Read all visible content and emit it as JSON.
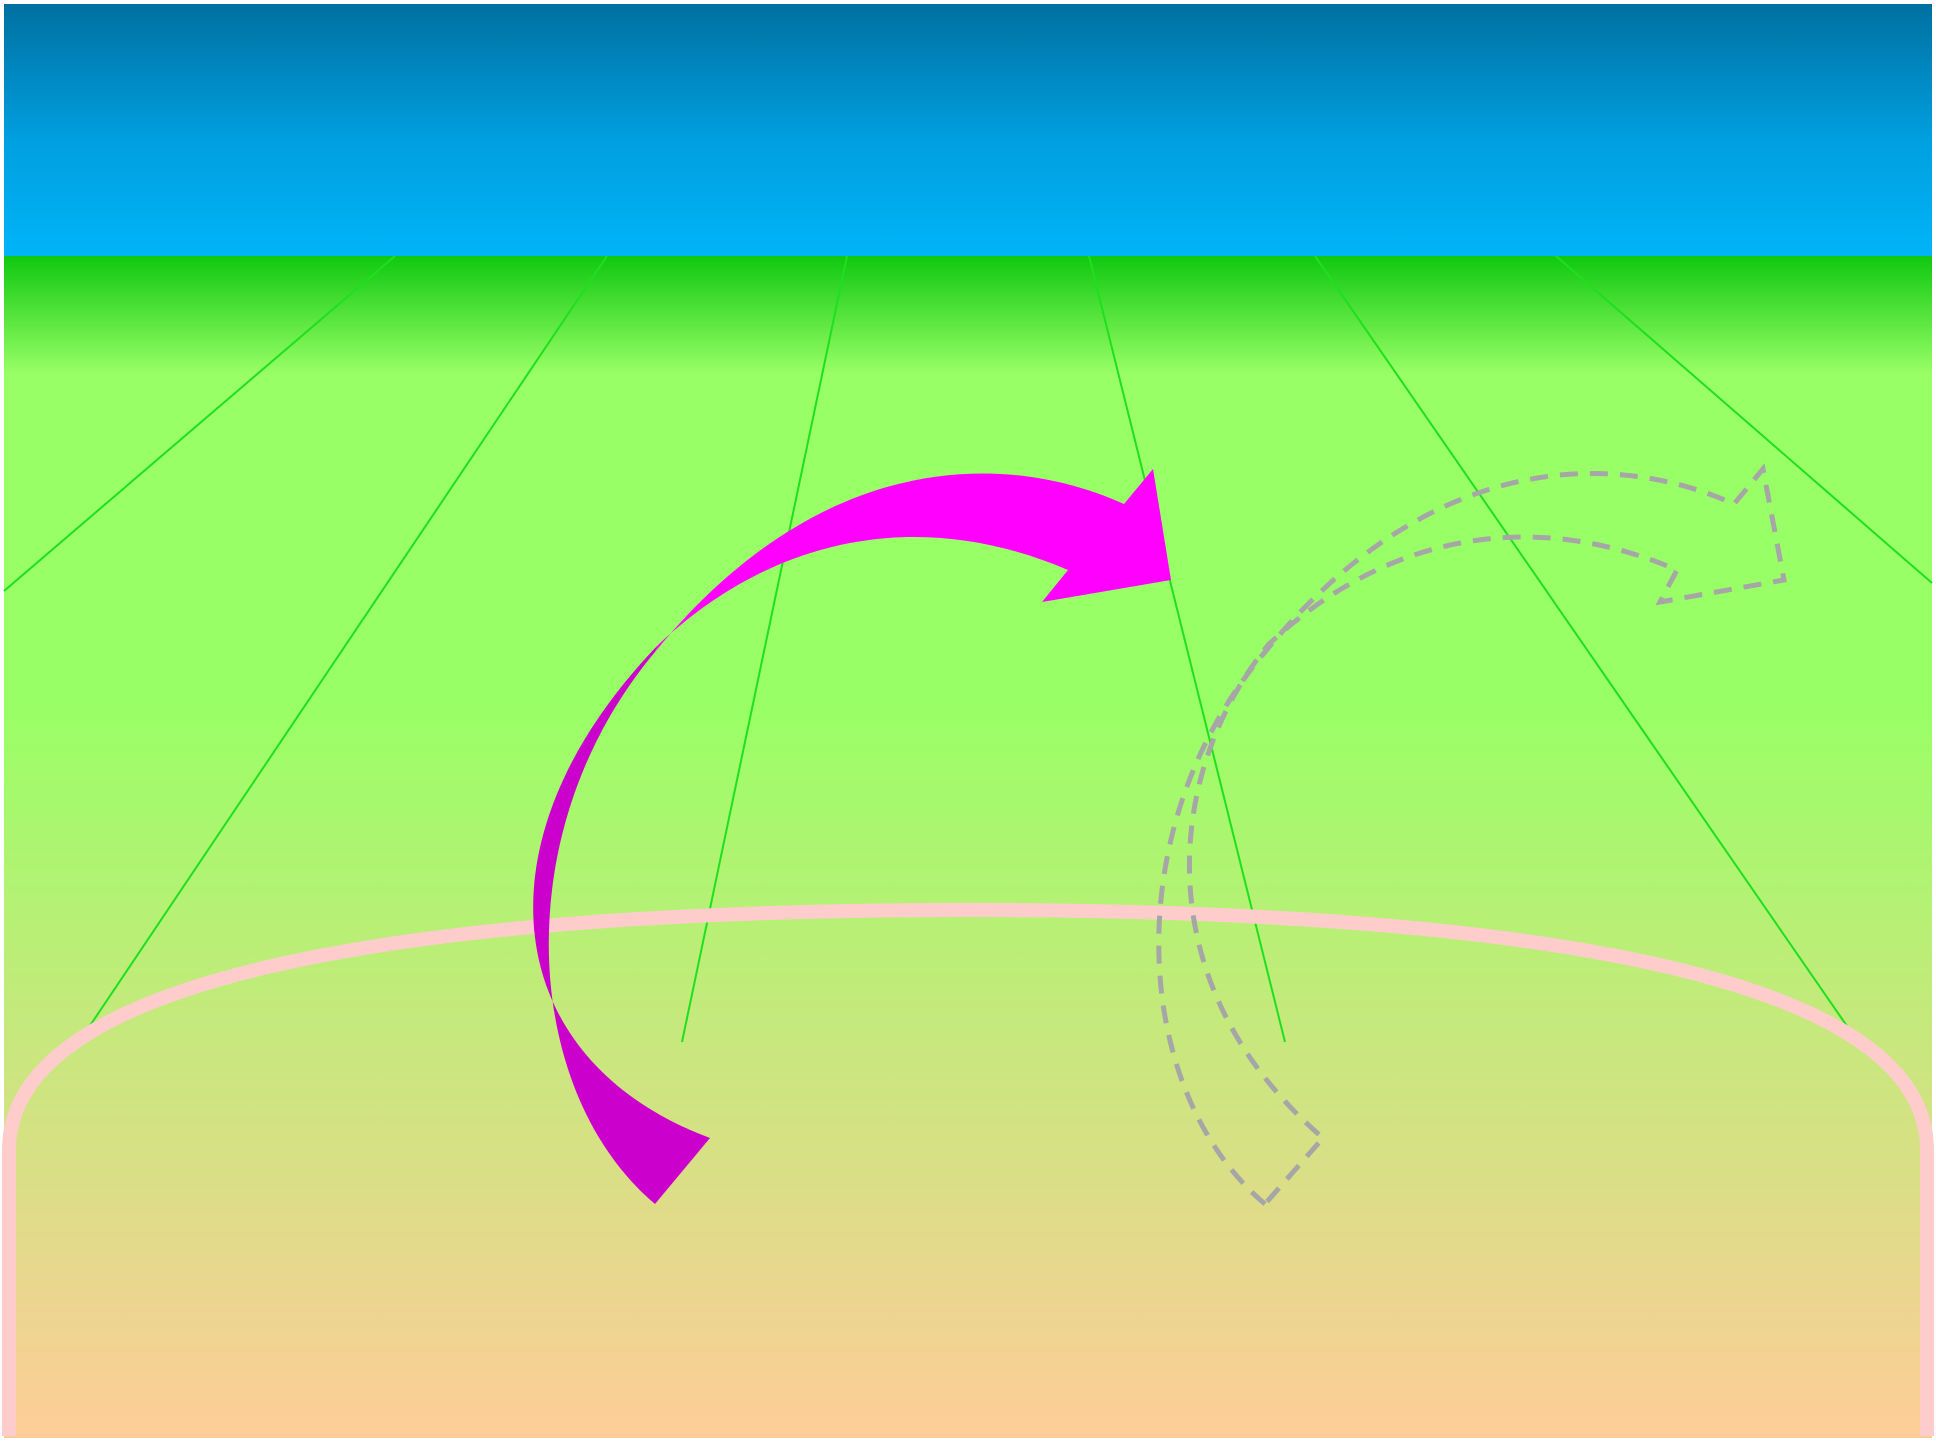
{
  "scene": {
    "colors": {
      "sky_top": "#0070a0",
      "sky_bottom": "#00b4f8",
      "grass_top": "#10c810",
      "grass_light": "#99ff66",
      "grass_ground": "#ffcc99",
      "lane_line": "#1ee01e",
      "stage_ring": "#ffcccc",
      "arrow_head": "#ff00ff",
      "arrow_tail": "#cc00cc",
      "ghost_outline": "#a6a6a6"
    },
    "elements": {
      "sky": "sky-panel",
      "field": "grass-field",
      "lanes": "perspective-lines",
      "ring": "ellipse-stage",
      "arrow": "curved-arrow-solid",
      "ghost": "curved-arrow-dashed-outline"
    }
  }
}
